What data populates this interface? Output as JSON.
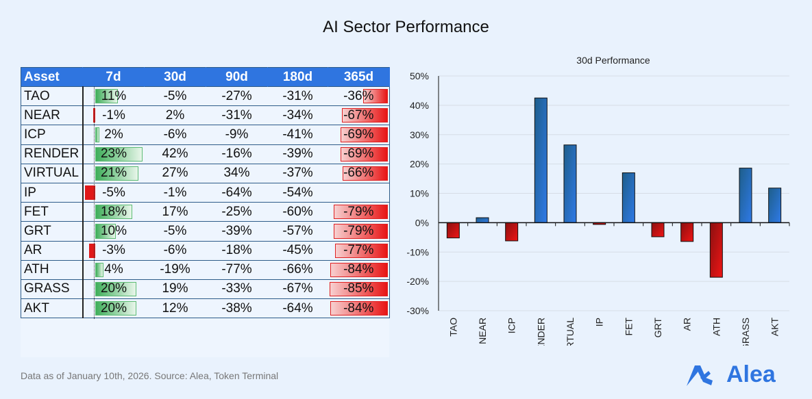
{
  "title": "AI Sector Performance",
  "table": {
    "headers": [
      "Asset",
      "7d",
      "30d",
      "90d",
      "180d",
      "365d"
    ],
    "rows": [
      [
        "TAO",
        "11%",
        "-5%",
        "-27%",
        "-31%",
        "-36%"
      ],
      [
        "NEAR",
        "-1%",
        "2%",
        "-31%",
        "-34%",
        "-67%"
      ],
      [
        "ICP",
        "2%",
        "-6%",
        "-9%",
        "-41%",
        "-69%"
      ],
      [
        "RENDER",
        "23%",
        "42%",
        "-16%",
        "-39%",
        "-69%"
      ],
      [
        "VIRTUAL",
        "21%",
        "27%",
        "34%",
        "-37%",
        "-66%"
      ],
      [
        "IP",
        "-5%",
        "-1%",
        "-64%",
        "-54%",
        ""
      ],
      [
        "FET",
        "18%",
        "17%",
        "-25%",
        "-60%",
        "-79%"
      ],
      [
        "GRT",
        "10%",
        "-5%",
        "-39%",
        "-57%",
        "-79%"
      ],
      [
        "AR",
        "-3%",
        "-6%",
        "-18%",
        "-45%",
        "-77%"
      ],
      [
        "ATH",
        "4%",
        "-19%",
        "-77%",
        "-66%",
        "-84%"
      ],
      [
        "GRASS",
        "20%",
        "19%",
        "-33%",
        "-67%",
        "-85%"
      ],
      [
        "AKT",
        "20%",
        "12%",
        "-38%",
        "-64%",
        "-84%"
      ]
    ],
    "colors": {
      "header": "#2f75e0",
      "positive_bar": "#3fae5a",
      "negative_bar": "#e81515"
    }
  },
  "chart_data": {
    "type": "bar",
    "title": "30d Performance",
    "categories": [
      "TAO",
      "NEAR",
      "ICP",
      "RENDER",
      "VIRTUAL",
      "IP",
      "FET",
      "GRT",
      "AR",
      "ATH",
      "GRASS",
      "AKT"
    ],
    "values": [
      -5.2,
      1.7,
      -6.2,
      42.5,
      26.5,
      -0.6,
      17,
      -4.8,
      -6.4,
      -18.6,
      18.6,
      11.8
    ],
    "ylim": [
      -30,
      50
    ],
    "yticks": [
      "-30%",
      "-20%",
      "-10%",
      "0%",
      "10%",
      "20%",
      "30%",
      "40%",
      "50%"
    ],
    "grid": true,
    "colors": {
      "positive": "#2f75e0",
      "negative": "#d42020"
    }
  },
  "footnote": "Data as of January 10th, 2026. Source: Alea, Token Terminal",
  "logo": {
    "text": "Alea",
    "color": "#2f75e0"
  }
}
